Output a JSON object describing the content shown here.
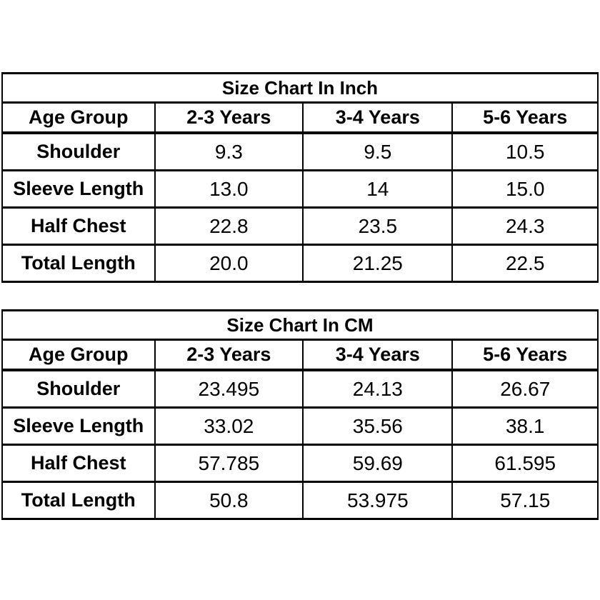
{
  "colors": {
    "background": "#ffffff",
    "text": "#000000",
    "border": "#000000"
  },
  "chart_data": [
    {
      "type": "table",
      "title": "Size Chart In Inch",
      "columns": [
        "Age Group",
        "2-3 Years",
        "3-4 Years",
        "5-6 Years"
      ],
      "rows": [
        [
          "Shoulder",
          "9.3",
          "9.5",
          "10.5"
        ],
        [
          "Sleeve Length",
          "13.0",
          "14",
          "15.0"
        ],
        [
          "Half Chest",
          "22.8",
          "23.5",
          "24.3"
        ],
        [
          "Total Length",
          "20.0",
          "21.25",
          "22.5"
        ]
      ]
    },
    {
      "type": "table",
      "title": "Size Chart In CM",
      "columns": [
        "Age Group",
        "2-3 Years",
        "3-4 Years",
        "5-6 Years"
      ],
      "rows": [
        [
          "Shoulder",
          "23.495",
          "24.13",
          "26.67"
        ],
        [
          "Sleeve Length",
          "33.02",
          "35.56",
          "38.1"
        ],
        [
          "Half Chest",
          "57.785",
          "59.69",
          "61.595"
        ],
        [
          "Total Length",
          "50.8",
          "53.975",
          "57.15"
        ]
      ]
    }
  ]
}
